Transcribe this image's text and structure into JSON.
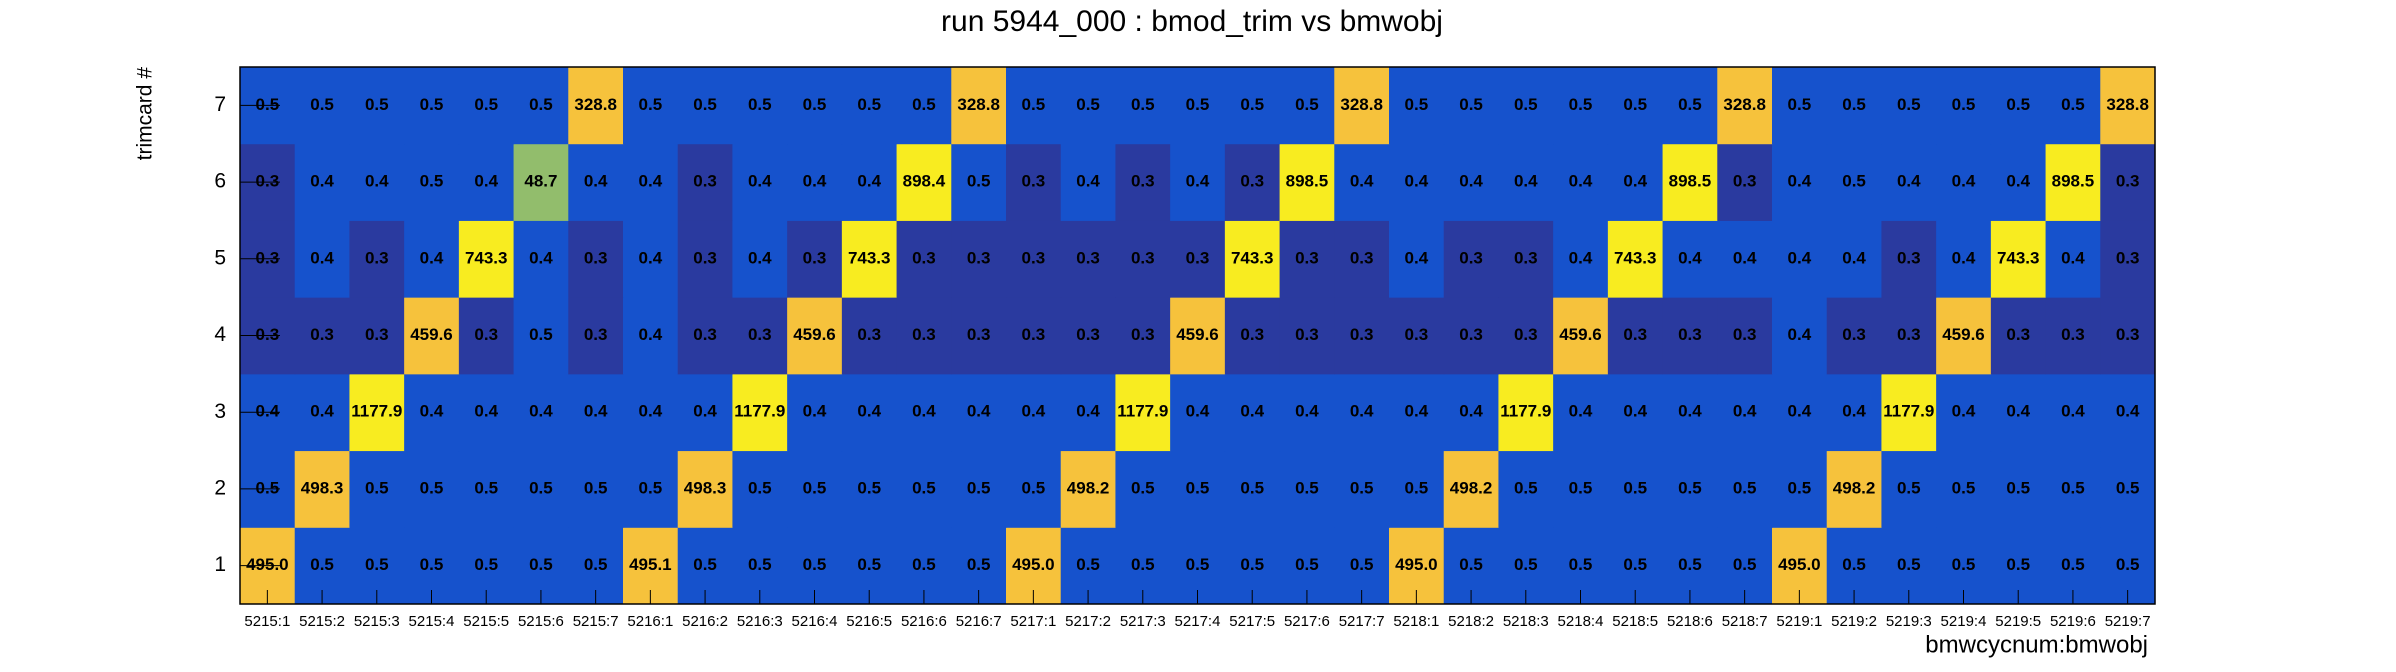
{
  "chart_data": {
    "type": "heatmap",
    "title": "run 5944_000 : bmod_trim vs bmwobj",
    "x_label": "bmwcycnum:bmwobj",
    "y_label": "trimcard #",
    "x_categories": [
      "5215:1",
      "5215:2",
      "5215:3",
      "5215:4",
      "5215:5",
      "5215:6",
      "5215:7",
      "5216:1",
      "5216:2",
      "5216:3",
      "5216:4",
      "5216:5",
      "5216:6",
      "5216:7",
      "5217:1",
      "5217:2",
      "5217:3",
      "5217:4",
      "5217:5",
      "5217:6",
      "5217:7",
      "5218:1",
      "5218:2",
      "5218:3",
      "5218:4",
      "5218:5",
      "5218:6",
      "5218:7",
      "5219:1",
      "5219:2",
      "5219:3",
      "5219:4",
      "5219:5",
      "5219:6",
      "5219:7"
    ],
    "y_categories": [
      1,
      2,
      3,
      4,
      5,
      6,
      7
    ],
    "values": [
      [
        495.0,
        0.5,
        0.5,
        0.5,
        0.5,
        0.5,
        0.5,
        495.1,
        0.5,
        0.5,
        0.5,
        0.5,
        0.5,
        0.5,
        495.0,
        0.5,
        0.5,
        0.5,
        0.5,
        0.5,
        0.5,
        495.0,
        0.5,
        0.5,
        0.5,
        0.5,
        0.5,
        0.5,
        495.0,
        0.5,
        0.5,
        0.5,
        0.5,
        0.5,
        0.5
      ],
      [
        0.5,
        498.3,
        0.5,
        0.5,
        0.5,
        0.5,
        0.5,
        0.5,
        498.3,
        0.5,
        0.5,
        0.5,
        0.5,
        0.5,
        0.5,
        498.2,
        0.5,
        0.5,
        0.5,
        0.5,
        0.5,
        0.5,
        498.2,
        0.5,
        0.5,
        0.5,
        0.5,
        0.5,
        0.5,
        498.2,
        0.5,
        0.5,
        0.5,
        0.5,
        0.5
      ],
      [
        0.4,
        0.4,
        1177.9,
        0.4,
        0.4,
        0.4,
        0.4,
        0.4,
        0.4,
        1177.9,
        0.4,
        0.4,
        0.4,
        0.4,
        0.4,
        0.4,
        1177.9,
        0.4,
        0.4,
        0.4,
        0.4,
        0.4,
        0.4,
        1177.9,
        0.4,
        0.4,
        0.4,
        0.4,
        0.4,
        0.4,
        1177.9,
        0.4,
        0.4,
        0.4,
        0.4
      ],
      [
        0.3,
        0.3,
        0.3,
        459.6,
        0.3,
        0.5,
        0.3,
        0.4,
        0.3,
        0.3,
        459.6,
        0.3,
        0.3,
        0.3,
        0.3,
        0.3,
        0.3,
        459.6,
        0.3,
        0.3,
        0.3,
        0.3,
        0.3,
        0.3,
        459.6,
        0.3,
        0.3,
        0.3,
        0.4,
        0.3,
        0.3,
        459.6,
        0.3,
        0.3,
        0.3
      ],
      [
        0.3,
        0.4,
        0.3,
        0.4,
        743.3,
        0.4,
        0.3,
        0.4,
        0.3,
        0.4,
        0.3,
        743.3,
        0.3,
        0.3,
        0.3,
        0.3,
        0.3,
        0.3,
        743.3,
        0.3,
        0.3,
        0.4,
        0.3,
        0.3,
        0.4,
        743.3,
        0.4,
        0.4,
        0.4,
        0.4,
        0.3,
        0.4,
        743.3,
        0.4,
        0.3
      ],
      [
        0.3,
        0.4,
        0.4,
        0.5,
        0.4,
        48.7,
        0.4,
        0.4,
        0.3,
        0.4,
        0.4,
        0.4,
        898.4,
        0.5,
        0.3,
        0.4,
        0.3,
        0.4,
        0.3,
        898.5,
        0.4,
        0.4,
        0.4,
        0.4,
        0.4,
        0.4,
        898.5,
        0.3,
        0.4,
        0.5,
        0.4,
        0.4,
        0.4,
        898.5,
        0.3
      ],
      [
        0.5,
        0.5,
        0.5,
        0.5,
        0.5,
        0.5,
        328.8,
        0.5,
        0.5,
        0.5,
        0.5,
        0.5,
        0.5,
        328.8,
        0.5,
        0.5,
        0.5,
        0.5,
        0.5,
        0.5,
        328.8,
        0.5,
        0.5,
        0.5,
        0.5,
        0.5,
        0.5,
        328.8,
        0.5,
        0.5,
        0.5,
        0.5,
        0.5,
        0.5,
        328.8
      ]
    ],
    "value_labels": [
      [
        "495.0",
        "0.5",
        "0.5",
        "0.5",
        "0.5",
        "0.5",
        "0.5",
        "495.1",
        "0.5",
        "0.5",
        "0.5",
        "0.5",
        "0.5",
        "0.5",
        "495.0",
        "0.5",
        "0.5",
        "0.5",
        "0.5",
        "0.5",
        "0.5",
        "495.0",
        "0.5",
        "0.5",
        "0.5",
        "0.5",
        "0.5",
        "0.5",
        "495.0",
        "0.5",
        "0.5",
        "0.5",
        "0.5",
        "0.5",
        "0.5"
      ],
      [
        "0.5",
        "498.3",
        "0.5",
        "0.5",
        "0.5",
        "0.5",
        "0.5",
        "0.5",
        "498.3",
        "0.5",
        "0.5",
        "0.5",
        "0.5",
        "0.5",
        "0.5",
        "498.2",
        "0.5",
        "0.5",
        "0.5",
        "0.5",
        "0.5",
        "0.5",
        "498.2",
        "0.5",
        "0.5",
        "0.5",
        "0.5",
        "0.5",
        "0.5",
        "498.2",
        "0.5",
        "0.5",
        "0.5",
        "0.5",
        "0.5"
      ],
      [
        "0.4",
        "0.4",
        "1177.9",
        "0.4",
        "0.4",
        "0.4",
        "0.4",
        "0.4",
        "0.4",
        "1177.9",
        "0.4",
        "0.4",
        "0.4",
        "0.4",
        "0.4",
        "0.4",
        "1177.9",
        "0.4",
        "0.4",
        "0.4",
        "0.4",
        "0.4",
        "0.4",
        "1177.9",
        "0.4",
        "0.4",
        "0.4",
        "0.4",
        "0.4",
        "0.4",
        "1177.9",
        "0.4",
        "0.4",
        "0.4",
        "0.4"
      ],
      [
        "0.3",
        "0.3",
        "0.3",
        "459.6",
        "0.3",
        "0.5",
        "0.3",
        "0.4",
        "0.3",
        "0.3",
        "459.6",
        "0.3",
        "0.3",
        "0.3",
        "0.3",
        "0.3",
        "0.3",
        "459.6",
        "0.3",
        "0.3",
        "0.3",
        "0.3",
        "0.3",
        "0.3",
        "459.6",
        "0.3",
        "0.3",
        "0.3",
        "0.4",
        "0.3",
        "0.3",
        "459.6",
        "0.3",
        "0.3",
        "0.3"
      ],
      [
        "0.3",
        "0.4",
        "0.3",
        "0.4",
        "743.3",
        "0.4",
        "0.3",
        "0.4",
        "0.3",
        "0.4",
        "0.3",
        "743.3",
        "0.3",
        "0.3",
        "0.3",
        "0.3",
        "0.3",
        "0.3",
        "743.3",
        "0.3",
        "0.3",
        "0.4",
        "0.3",
        "0.3",
        "0.4",
        "743.3",
        "0.4",
        "0.4",
        "0.4",
        "0.4",
        "0.3",
        "0.4",
        "743.3",
        "0.4",
        "0.3"
      ],
      [
        "0.3",
        "0.4",
        "0.4",
        "0.5",
        "0.4",
        "48.7",
        "0.4",
        "0.4",
        "0.3",
        "0.4",
        "0.4",
        "0.4",
        "898.4",
        "0.5",
        "0.3",
        "0.4",
        "0.3",
        "0.4",
        "0.3",
        "898.5",
        "0.4",
        "0.4",
        "0.4",
        "0.4",
        "0.4",
        "0.4",
        "898.5",
        "0.3",
        "0.4",
        "0.5",
        "0.4",
        "0.4",
        "0.4",
        "898.5",
        "0.3"
      ],
      [
        "0.5",
        "0.5",
        "0.5",
        "0.5",
        "0.5",
        "0.5",
        "328.8",
        "0.5",
        "0.5",
        "0.5",
        "0.5",
        "0.5",
        "0.5",
        "328.8",
        "0.5",
        "0.5",
        "0.5",
        "0.5",
        "0.5",
        "0.5",
        "328.8",
        "0.5",
        "0.5",
        "0.5",
        "0.5",
        "0.5",
        "0.5",
        "328.8",
        "0.5",
        "0.5",
        "0.5",
        "0.5",
        "0.5",
        "0.5",
        "328.8"
      ]
    ],
    "palette": [
      "#2a3a9f",
      "#1652cc",
      "#92bd6c",
      "#f6c23c",
      "#f8ec20"
    ],
    "log_z": true
  }
}
